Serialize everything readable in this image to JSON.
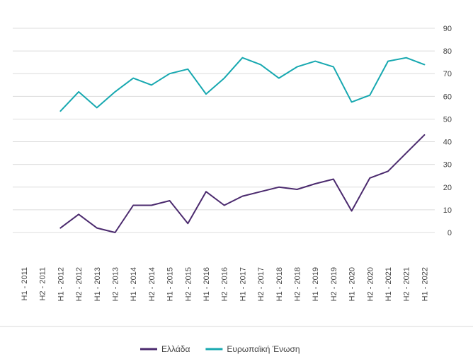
{
  "chart_data": {
    "type": "line",
    "title": "",
    "xlabel": "",
    "ylabel": "",
    "ylim": [
      0,
      90
    ],
    "y_ticks": [
      0,
      10,
      20,
      30,
      40,
      50,
      60,
      70,
      80,
      90
    ],
    "y_axis_position": "right",
    "grid": true,
    "legend_position": "bottom-center",
    "categories": [
      "H1 - 2011",
      "H2 - 2011",
      "H1 - 2012",
      "H2 - 2012",
      "H1 - 2013",
      "H2 - 2013",
      "H1 - 2014",
      "H2 - 2014",
      "H1 - 2015",
      "H2 - 2015",
      "H1 - 2016",
      "H2 - 2016",
      "H1 - 2017",
      "H2 - 2017",
      "H1 - 2018",
      "H2 - 2018",
      "H1 - 2019",
      "H2 - 2019",
      "H1 - 2020",
      "H2 - 2020",
      "H1 - 2021",
      "H2 - 2021",
      "H1 - 2022"
    ],
    "series": [
      {
        "name": "Ελλάδα",
        "color": "#4b2a6e",
        "values": [
          null,
          null,
          2,
          8,
          2,
          0,
          12,
          12,
          14,
          4,
          18,
          12,
          16,
          18,
          20,
          19,
          21.5,
          23.5,
          9.5,
          24,
          27,
          35,
          43
        ]
      },
      {
        "name": "Ευρωπαϊκή Ένωση",
        "color": "#17a8b0",
        "values": [
          null,
          null,
          53.5,
          62,
          55,
          62,
          68,
          65,
          70,
          72,
          61,
          68,
          77,
          74,
          68,
          73,
          75.5,
          73,
          57.5,
          60.5,
          75.5,
          77,
          74
        ]
      }
    ]
  }
}
